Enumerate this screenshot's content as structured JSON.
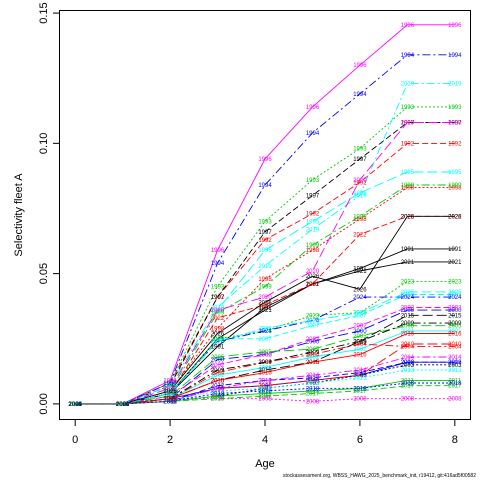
{
  "chart_data": {
    "type": "line",
    "xlabel": "Age",
    "ylabel": "Selectivity fleet A",
    "xlim": [
      -0.32,
      8.32
    ],
    "ylim": [
      -0.0058,
      0.1508
    ],
    "x_ticks": [
      "0",
      "2",
      "4",
      "6",
      "8"
    ],
    "y_ticks": [
      "0.00",
      "0.05",
      "0.10",
      "0.15"
    ],
    "grid": false,
    "legend": "none",
    "x": [
      0,
      1,
      2,
      3,
      4,
      5,
      6,
      7,
      8
    ],
    "series": [
      {
        "name": "1991",
        "color": "#000000",
        "dash": "",
        "values": [
          0,
          0,
          0.004,
          0.022,
          0.037,
          0.046,
          0.052,
          0.0595,
          0.0595
        ]
      },
      {
        "name": "1992",
        "color": "#ff0000",
        "dash": "6,3",
        "values": [
          0,
          0,
          0.008,
          0.041,
          0.063,
          0.073,
          0.085,
          0.1,
          0.1
        ]
      },
      {
        "name": "1993",
        "color": "#00cc00",
        "dash": "2,2",
        "values": [
          0,
          0,
          0.008,
          0.045,
          0.07,
          0.086,
          0.098,
          0.114,
          0.114
        ]
      },
      {
        "name": "1994",
        "color": "#0000ff",
        "dash": "8,3,2,3",
        "values": [
          0,
          0,
          0.008,
          0.054,
          0.084,
          0.104,
          0.119,
          0.134,
          0.134
        ]
      },
      {
        "name": "1995",
        "color": "#00ffff",
        "dash": "10,4",
        "values": [
          0,
          0,
          0.006,
          0.036,
          0.059,
          0.07,
          0.081,
          0.089,
          0.089
        ]
      },
      {
        "name": "1996",
        "color": "#ff00ff",
        "dash": "",
        "values": [
          0,
          0,
          0.009,
          0.059,
          0.094,
          0.114,
          0.13,
          0.1455,
          0.1455
        ]
      },
      {
        "name": "1997",
        "color": "#000000",
        "dash": "6,3",
        "values": [
          0,
          0,
          0.007,
          0.041,
          0.066,
          0.08,
          0.094,
          0.108,
          0.108
        ]
      },
      {
        "name": "1998",
        "color": "#ff0000",
        "dash": "2,2",
        "values": [
          0,
          0,
          0.005,
          0.029,
          0.048,
          0.059,
          0.071,
          0.083,
          0.083
        ]
      },
      {
        "name": "1999",
        "color": "#00cc00",
        "dash": "8,3,2,3",
        "values": [
          0,
          0,
          0.005,
          0.035,
          0.045,
          0.061,
          0.072,
          0.084,
          0.084
        ]
      },
      {
        "name": "2000",
        "color": "#0000ff",
        "dash": "10,4",
        "values": [
          0,
          0,
          0.002,
          0.017,
          0.019,
          0.024,
          0.028,
          0.036,
          0.036
        ]
      },
      {
        "name": "2001",
        "color": "#00ffff",
        "dash": "",
        "values": [
          0,
          0,
          0.002,
          0.011,
          0.014,
          0.018,
          0.021,
          0.028,
          0.028
        ]
      },
      {
        "name": "2002",
        "color": "#ff00ff",
        "dash": "6,3",
        "values": [
          0,
          0,
          0.003,
          0.015,
          0.019,
          0.025,
          0.03,
          0.037,
          0.037
        ]
      },
      {
        "name": "2003",
        "color": "#000000",
        "dash": "2,2",
        "values": [
          0,
          0,
          0.001,
          0.003,
          0.006,
          0.008,
          0.011,
          0.015,
          0.015
        ]
      },
      {
        "name": "2004",
        "color": "#ff0000",
        "dash": "8,3,2,3",
        "values": [
          0,
          0,
          0.002,
          0.012,
          0.016,
          0.019,
          0.023,
          0.022,
          0.022
        ]
      },
      {
        "name": "2005",
        "color": "#00cc00",
        "dash": "10,4",
        "values": [
          0,
          0,
          0.003,
          0.018,
          0.02,
          0.021,
          0.026,
          0.03,
          0.03
        ]
      },
      {
        "name": "2006",
        "color": "#0000ff",
        "dash": "",
        "values": [
          0,
          0,
          0.002,
          0.006,
          0.007,
          0.009,
          0.011,
          0.016,
          0.016
        ]
      },
      {
        "name": "2007",
        "color": "#00ffff",
        "dash": "6,3",
        "values": [
          0,
          0,
          0.004,
          0.025,
          0.025,
          0.03,
          0.034,
          0.042,
          0.042
        ]
      },
      {
        "name": "2008",
        "color": "#ff00ff",
        "dash": "2,2",
        "values": [
          0,
          0,
          0.002,
          0.002,
          0.002,
          0.001,
          0.002,
          0.002,
          0.002
        ]
      },
      {
        "name": "2009",
        "color": "#000000",
        "dash": "8,3,2,3",
        "values": [
          0,
          0,
          0.002,
          0.013,
          0.016,
          0.02,
          0.024,
          0.031,
          0.031
        ]
      },
      {
        "name": "2010",
        "color": "#ff0000",
        "dash": "10,4",
        "values": [
          0,
          0,
          0.001,
          0.006,
          0.007,
          0.009,
          0.011,
          0.023,
          0.023
        ]
      },
      {
        "name": "2011",
        "color": "#00cc00",
        "dash": "",
        "values": [
          0,
          0,
          0.001,
          0.003,
          0.004,
          0.005,
          0.006,
          0.009,
          0.009
        ]
      },
      {
        "name": "2012",
        "color": "#0000ff",
        "dash": "6,3",
        "values": [
          0,
          0,
          0.001,
          0.007,
          0.009,
          0.01,
          0.012,
          0.016,
          0.016
        ]
      },
      {
        "name": "2013",
        "color": "#00ffff",
        "dash": "2,2",
        "values": [
          0,
          0,
          0.001,
          0.005,
          0.006,
          0.008,
          0.01,
          0.013,
          0.013
        ]
      },
      {
        "name": "2014",
        "color": "#ff00ff",
        "dash": "8,3,2,3",
        "values": [
          0,
          0,
          0.001,
          0.006,
          0.009,
          0.011,
          0.013,
          0.018,
          0.018
        ]
      },
      {
        "name": "2015",
        "color": "#000000",
        "dash": "10,4",
        "values": [
          0,
          0,
          0.002,
          0.009,
          0.013,
          0.016,
          0.024,
          0.034,
          0.034
        ]
      },
      {
        "name": "2016",
        "color": "#ff0000",
        "dash": "",
        "values": [
          0,
          0,
          0.002,
          0.009,
          0.012,
          0.016,
          0.019,
          0.027,
          0.027
        ]
      },
      {
        "name": "2017",
        "color": "#00cc00",
        "dash": "6,3",
        "values": [
          0,
          0,
          0.001,
          0.002,
          0.003,
          0.004,
          0.005,
          0.007,
          0.007
        ]
      },
      {
        "name": "2018",
        "color": "#0000ff",
        "dash": "2,2",
        "values": [
          0,
          0,
          0.001,
          0.004,
          0.005,
          0.006,
          0.006,
          0.008,
          0.008
        ]
      },
      {
        "name": "2019",
        "color": "#00ffff",
        "dash": "8,3,2,3",
        "values": [
          0,
          0,
          0.007,
          0.037,
          0.053,
          0.067,
          0.08,
          0.123,
          0.123
        ]
      },
      {
        "name": "2020",
        "color": "#ff00ff",
        "dash": "10,4",
        "values": [
          0,
          0,
          0.006,
          0.036,
          0.041,
          0.051,
          0.086,
          0.108,
          0.108
        ]
      },
      {
        "name": "2021",
        "color": "#000000",
        "dash": "",
        "values": [
          0,
          0,
          0.004,
          0.025,
          0.036,
          0.046,
          0.051,
          0.0545,
          0.0545
        ]
      },
      {
        "name": "2022",
        "color": "#ff0000",
        "dash": "6,3",
        "values": [
          0,
          0,
          0.004,
          0.033,
          0.038,
          0.046,
          0.065,
          0.072,
          0.072
        ]
      },
      {
        "name": "2023",
        "color": "#00cc00",
        "dash": "2,2",
        "values": [
          0,
          0,
          0.004,
          0.025,
          0.028,
          0.034,
          0.035,
          0.047,
          0.047
        ]
      },
      {
        "name": "2024",
        "color": "#0000ff",
        "dash": "8,3,2,3",
        "values": [
          0,
          0,
          0.004,
          0.024,
          0.028,
          0.032,
          0.041,
          0.041,
          0.041
        ]
      },
      {
        "name": "2025",
        "color": "#00ffff",
        "dash": "10,4",
        "values": [
          0,
          0,
          0.004,
          0.024,
          0.029,
          0.032,
          0.035,
          0.043,
          0.043
        ]
      },
      {
        "name": "2026",
        "color": "#000000",
        "dash": "",
        "values": [
          0,
          0,
          0.005,
          0.027,
          0.039,
          0.049,
          0.044,
          0.072,
          0.072
        ]
      }
    ]
  },
  "footer": {
    "text": "stockassessment.org, WBSS_HAWG_2025_benchmark_init, r19412, git:416ad5f00582"
  }
}
